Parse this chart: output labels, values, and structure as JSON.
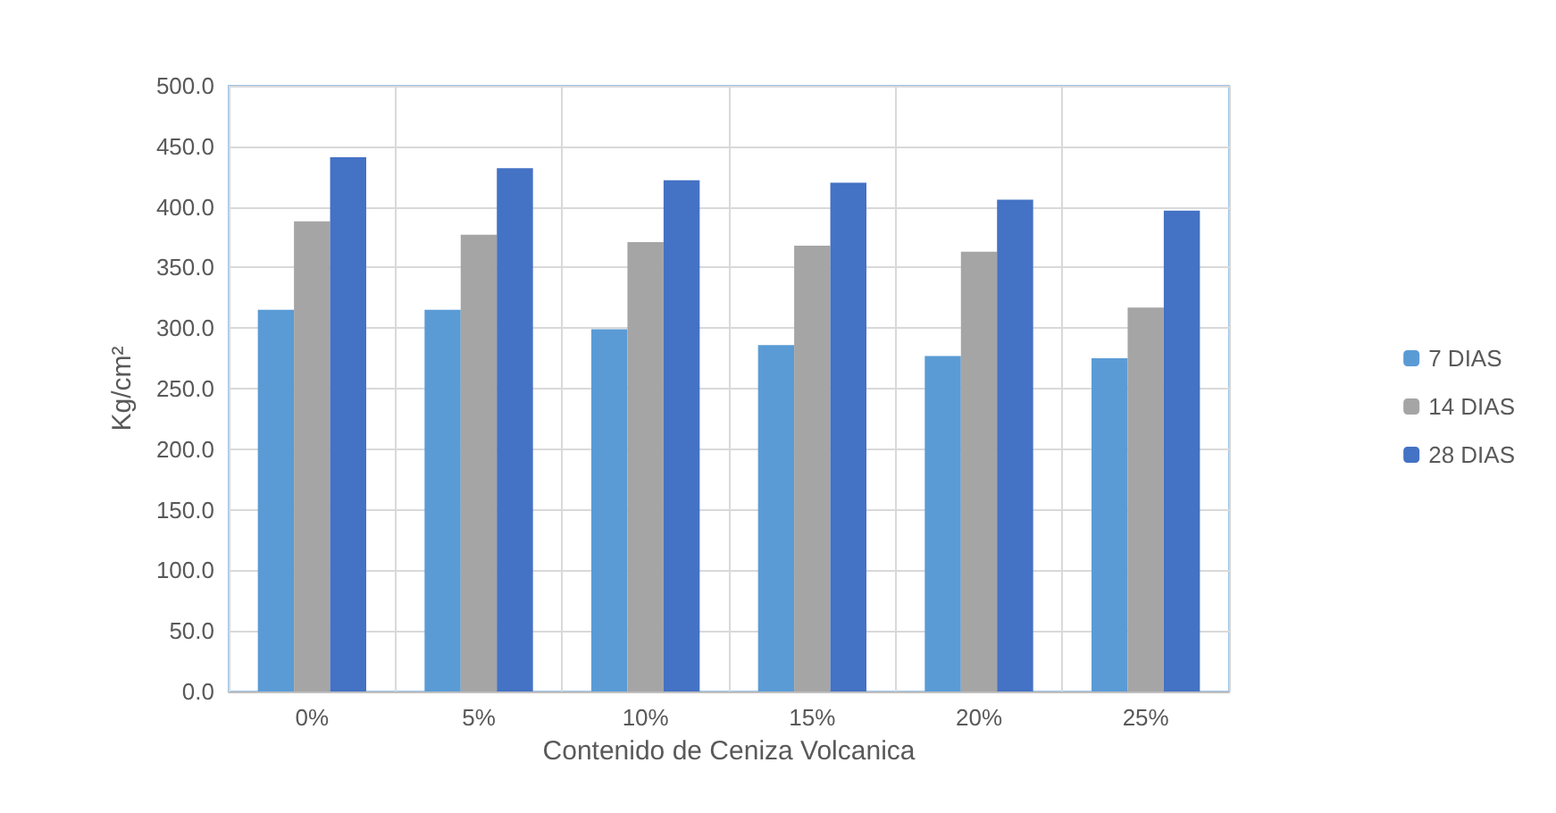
{
  "chart_data": {
    "type": "bar",
    "xlabel": "Contenido de Ceniza Volcanica",
    "ylabel": "Kg/cm²",
    "categories": [
      "0%",
      "5%",
      "10%",
      "15%",
      "20%",
      "25%"
    ],
    "series": [
      {
        "name": "7 DIAS",
        "color": "#5b9bd5",
        "values": [
          315,
          315,
          299,
          286,
          277,
          275
        ]
      },
      {
        "name": "14 DIAS",
        "color": "#a5a5a5",
        "values": [
          388,
          377,
          371,
          368,
          363,
          317
        ]
      },
      {
        "name": "28 DIAS",
        "color": "#4472c4",
        "values": [
          441,
          432,
          422,
          420,
          406,
          397
        ]
      }
    ],
    "ylim": [
      0,
      500
    ],
    "yticks": [
      {
        "value": 0,
        "label": "0.0"
      },
      {
        "value": 50,
        "label": "50.0"
      },
      {
        "value": 100,
        "label": "100.0"
      },
      {
        "value": 150,
        "label": "150.0"
      },
      {
        "value": 200,
        "label": "200.0"
      },
      {
        "value": 250,
        "label": "250.0"
      },
      {
        "value": 300,
        "label": "300.0"
      },
      {
        "value": 350,
        "label": "350.0"
      },
      {
        "value": 400,
        "label": "400.0"
      },
      {
        "value": 450,
        "label": "450.0"
      },
      {
        "value": 500,
        "label": "500.0"
      }
    ],
    "grid": true,
    "legend": "right"
  }
}
